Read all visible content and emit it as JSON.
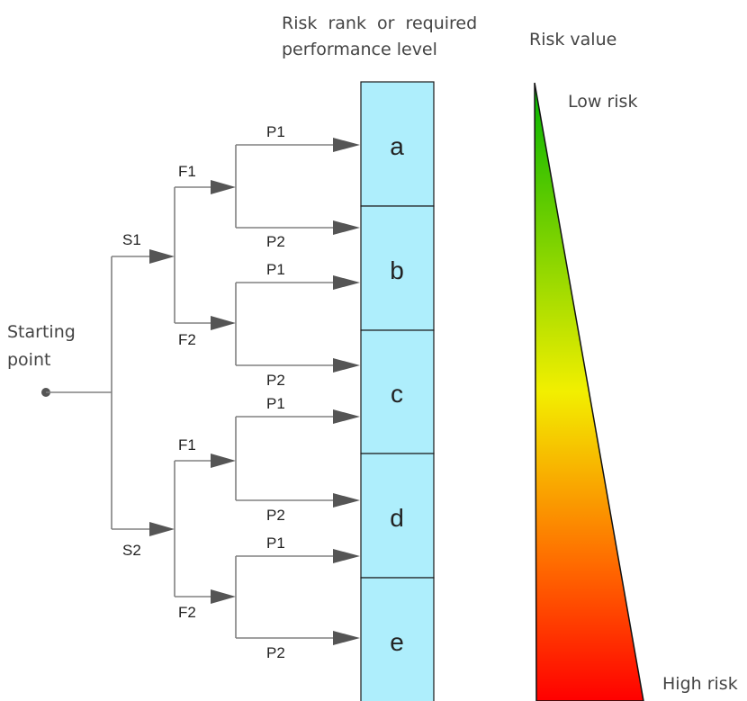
{
  "header": {
    "rank_title_line1": "Risk  rank  or  required",
    "rank_title_line2": "performance level",
    "risk_value_title": "Risk value"
  },
  "start": {
    "line1": "Starting",
    "line2": "point"
  },
  "severity": {
    "s1": "S1",
    "s2": "S2"
  },
  "frequency": {
    "f1_upper": "F1",
    "f2_upper": "F2",
    "f1_lower": "F1",
    "f2_lower": "F2"
  },
  "possibility": {
    "p1": "P1",
    "p2": "P2"
  },
  "ranks": [
    "a",
    "b",
    "c",
    "d",
    "e"
  ],
  "risk_scale": {
    "low_label": "Low risk",
    "high_label": "High risk",
    "colors": {
      "low": "#00b400",
      "mid": "#f2ef00",
      "orange": "#ff6a00",
      "high": "#ff0000"
    }
  },
  "colors": {
    "rank_fill": "#aeeefc",
    "rank_border": "#1a1a1a",
    "tree_line": "#808080"
  }
}
